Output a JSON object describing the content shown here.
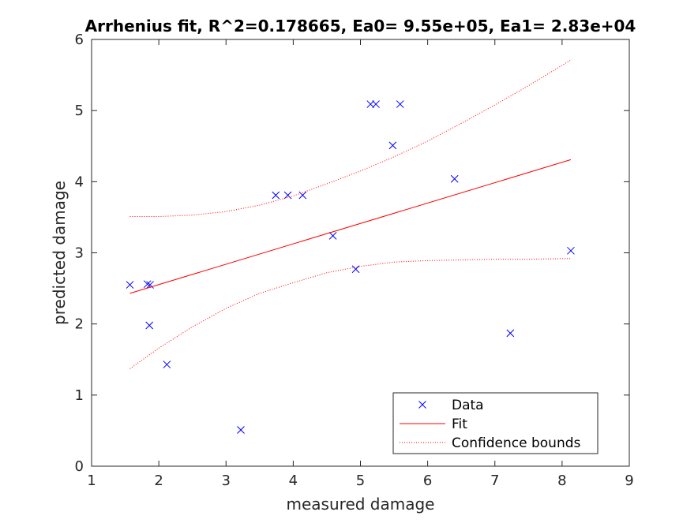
{
  "chart_data": {
    "type": "scatter",
    "title": "Arrhenius fit, R^2=0.178665, Ea0= 9.55e+05, Ea1= 2.83e+04",
    "xlabel": "measured damage",
    "ylabel": "predicted damage",
    "xlim": [
      1,
      9
    ],
    "ylim": [
      0,
      6
    ],
    "xticks": [
      "1",
      "2",
      "3",
      "4",
      "5",
      "6",
      "7",
      "8",
      "9"
    ],
    "yticks": [
      "0",
      "1",
      "2",
      "3",
      "4",
      "5",
      "6"
    ],
    "grid": false,
    "legend_position": "bottom-right",
    "colors": {
      "data": "#0000ff",
      "fit": "#ff0000",
      "bounds": "#ff0000"
    },
    "series": [
      {
        "name": "Data",
        "kind": "markers",
        "marker": "x",
        "x": [
          1.57,
          1.83,
          1.87,
          1.86,
          2.12,
          3.22,
          3.74,
          3.92,
          4.14,
          4.59,
          4.93,
          5.15,
          5.23,
          5.48,
          5.59,
          6.4,
          7.23,
          8.13
        ],
        "y": [
          2.55,
          2.56,
          2.55,
          1.98,
          1.43,
          0.51,
          3.81,
          3.81,
          3.81,
          3.24,
          2.77,
          5.09,
          5.09,
          4.51,
          5.09,
          4.04,
          1.87,
          3.03
        ]
      },
      {
        "name": "Fit",
        "kind": "line",
        "style": "solid",
        "x": [
          1.57,
          8.13
        ],
        "y": [
          2.43,
          4.31
        ]
      },
      {
        "name": "Confidence bounds",
        "kind": "line",
        "style": "dotted",
        "x": [
          1.57,
          2.0,
          2.5,
          3.0,
          3.5,
          4.0,
          4.5,
          5.0,
          5.5,
          6.0,
          6.5,
          7.0,
          7.5,
          8.13
        ],
        "y": [
          3.51,
          3.51,
          3.53,
          3.58,
          3.67,
          3.8,
          3.97,
          4.15,
          4.35,
          4.57,
          4.82,
          5.08,
          5.35,
          5.71
        ]
      },
      {
        "kind": "line",
        "style": "dotted",
        "x": [
          1.57,
          2.0,
          2.5,
          3.0,
          3.5,
          4.0,
          4.5,
          5.0,
          5.5,
          6.0,
          6.5,
          7.0,
          7.5,
          8.13
        ],
        "y": [
          1.37,
          1.66,
          1.96,
          2.22,
          2.43,
          2.58,
          2.72,
          2.81,
          2.87,
          2.89,
          2.9,
          2.91,
          2.91,
          2.92
        ]
      }
    ]
  }
}
